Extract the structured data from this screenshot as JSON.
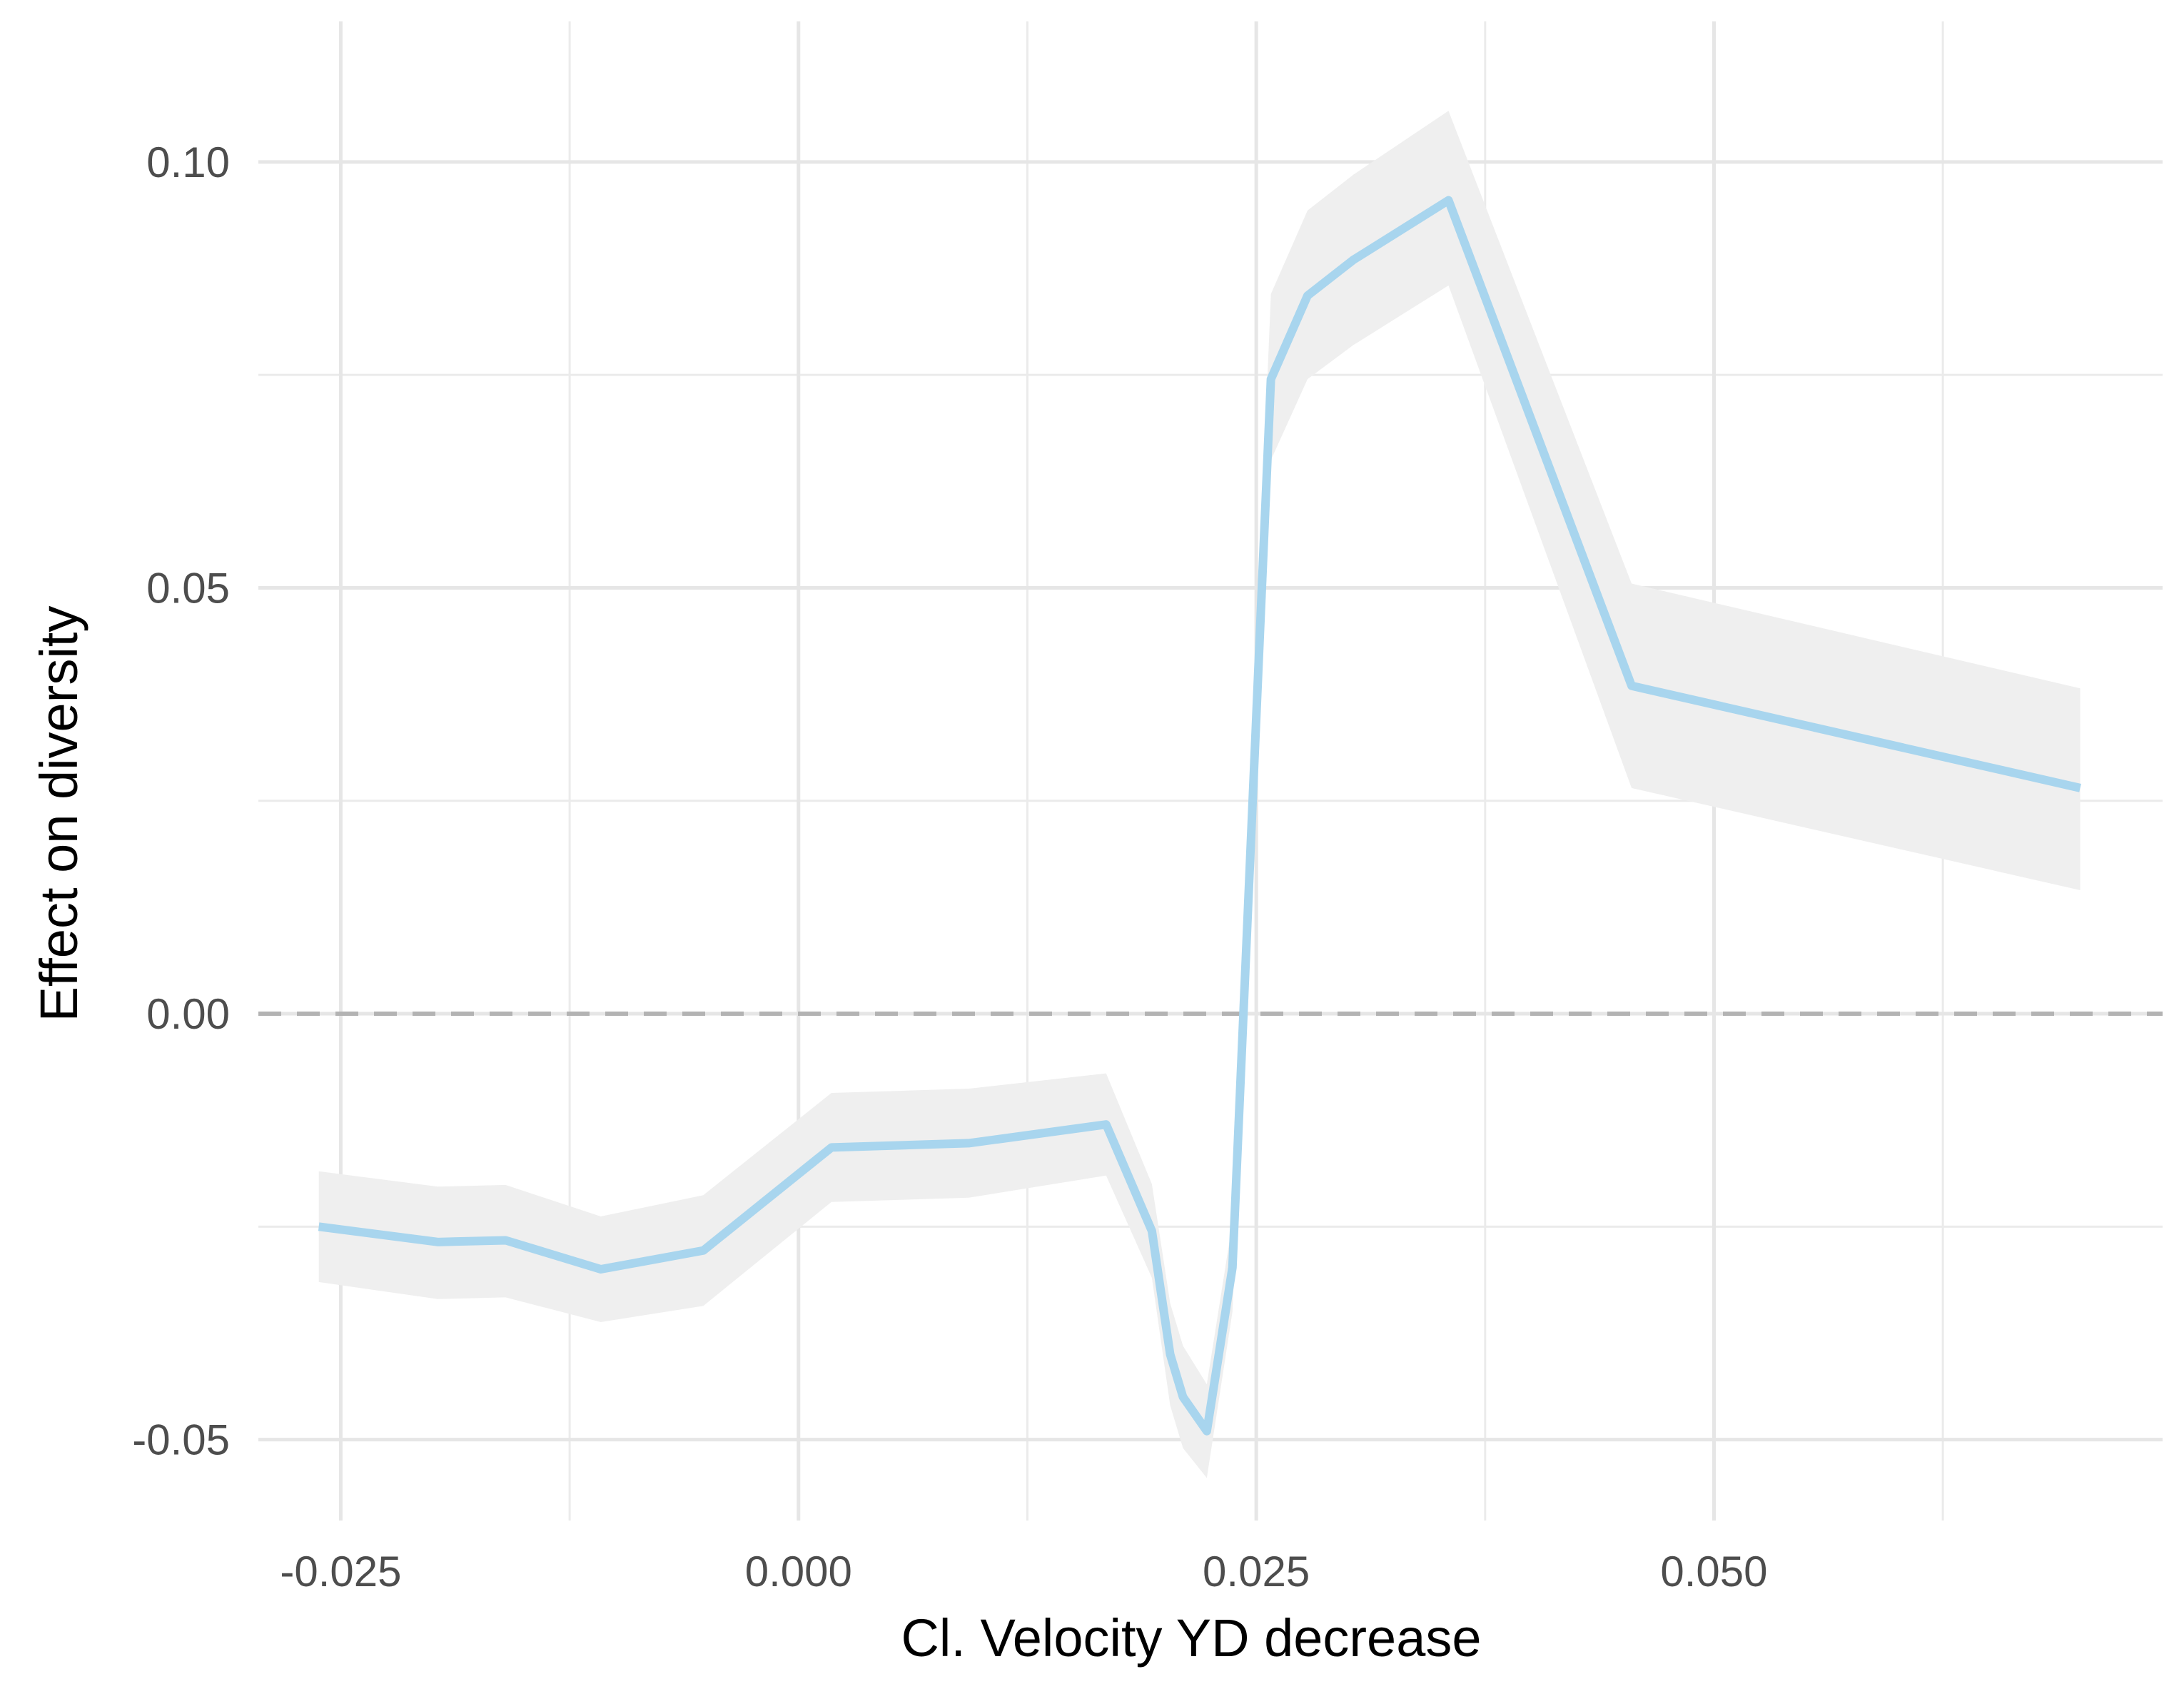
{
  "chart_data": {
    "type": "line",
    "title": "",
    "xlabel": "Cl. Velocity YD decrease",
    "ylabel": "Effect on diversity",
    "xlim": [
      -0.0295,
      0.0745
    ],
    "ylim": [
      -0.0595,
      0.1165
    ],
    "x_ticks": [
      -0.025,
      0.0,
      0.025,
      0.05
    ],
    "x_tick_labels": [
      "-0.025",
      "0.000",
      "0.025",
      "0.050"
    ],
    "y_ticks": [
      -0.05,
      0.0,
      0.05,
      0.1
    ],
    "y_tick_labels": [
      "-0.05",
      "0.00",
      "0.05",
      "0.10"
    ],
    "grid": true,
    "reference_line": {
      "y": 0,
      "style": "dashed",
      "color": "#b3b3b3"
    },
    "series": [
      {
        "color": "#a8d5ee",
        "band_color": "#efefef",
        "points": [
          {
            "x": -0.0262,
            "y": -0.025,
            "lo": -0.0315,
            "hi": -0.0185
          },
          {
            "x": -0.0197,
            "y": -0.0268,
            "lo": -0.0335,
            "hi": -0.0203
          },
          {
            "x": -0.016,
            "y": -0.0266,
            "lo": -0.0333,
            "hi": -0.0201
          },
          {
            "x": -0.0108,
            "y": -0.03,
            "lo": -0.0362,
            "hi": -0.0238
          },
          {
            "x": -0.0052,
            "y": -0.0278,
            "lo": -0.0343,
            "hi": -0.0213
          },
          {
            "x": 0.0018,
            "y": -0.0157,
            "lo": -0.0221,
            "hi": -0.0093
          },
          {
            "x": 0.0093,
            "y": -0.0152,
            "lo": -0.0216,
            "hi": -0.0088
          },
          {
            "x": 0.0168,
            "y": -0.013,
            "lo": -0.019,
            "hi": -0.007
          },
          {
            "x": 0.0193,
            "y": -0.0255,
            "lo": -0.031,
            "hi": -0.02
          },
          {
            "x": 0.0203,
            "y": -0.04,
            "lo": -0.046,
            "hi": -0.034
          },
          {
            "x": 0.021,
            "y": -0.045,
            "lo": -0.051,
            "hi": -0.039
          },
          {
            "x": 0.0223,
            "y": -0.049,
            "lo": -0.0545,
            "hi": -0.0435
          },
          {
            "x": 0.0237,
            "y": -0.0298,
            "lo": -0.035,
            "hi": -0.0245
          },
          {
            "x": 0.0258,
            "y": 0.0745,
            "lo": 0.065,
            "hi": 0.0845
          },
          {
            "x": 0.0278,
            "y": 0.0843,
            "lo": 0.0745,
            "hi": 0.0943
          },
          {
            "x": 0.0303,
            "y": 0.0885,
            "lo": 0.0785,
            "hi": 0.0985
          },
          {
            "x": 0.0355,
            "y": 0.0955,
            "lo": 0.0855,
            "hi": 0.106
          },
          {
            "x": 0.0455,
            "y": 0.0385,
            "lo": 0.0265,
            "hi": 0.0505
          },
          {
            "x": 0.07,
            "y": 0.0265,
            "lo": 0.0145,
            "hi": 0.0382
          }
        ]
      }
    ]
  }
}
